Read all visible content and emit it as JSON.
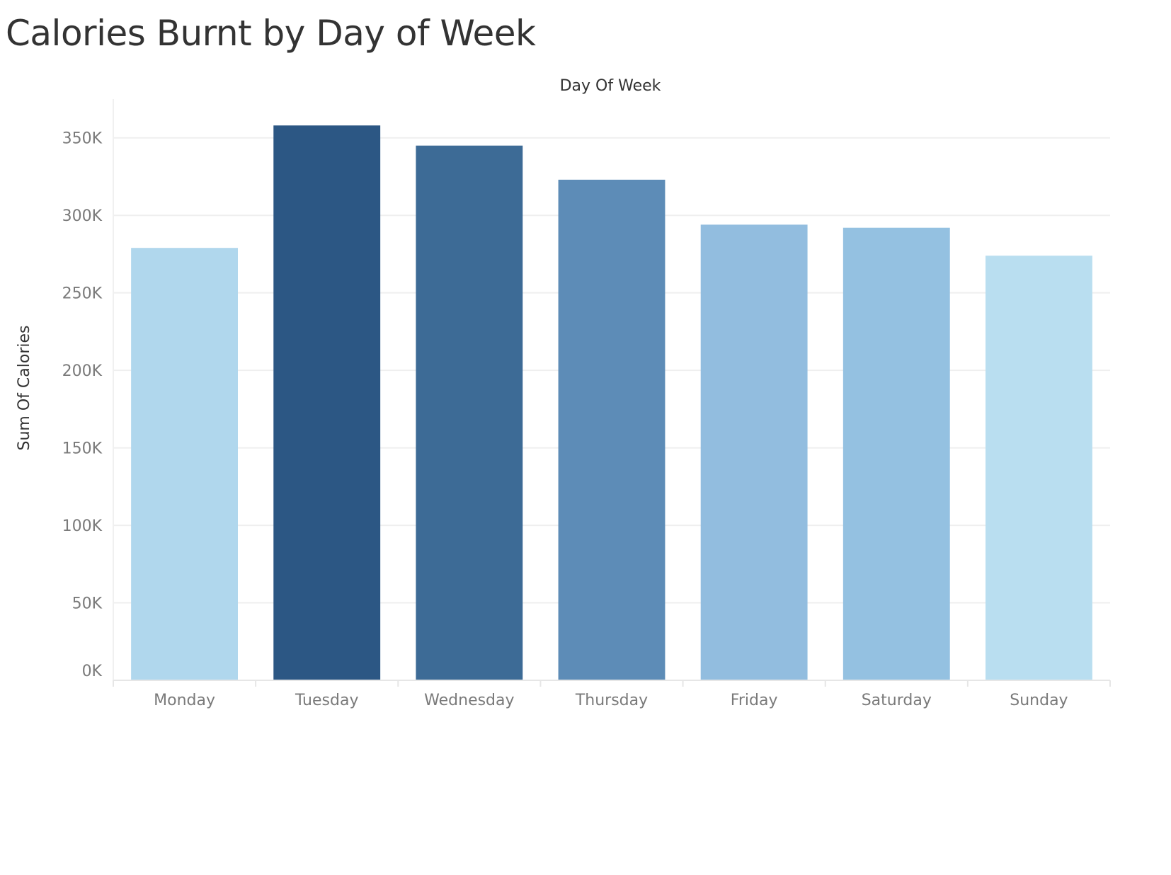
{
  "chart_data": {
    "type": "bar",
    "title": "Calories Burnt by Day of Week",
    "column_header": "Day Of Week",
    "xlabel": "",
    "ylabel": "Sum Of Calories",
    "categories": [
      "Monday",
      "Tuesday",
      "Wednesday",
      "Thursday",
      "Friday",
      "Saturday",
      "Sunday"
    ],
    "values": [
      279000,
      358000,
      345000,
      323000,
      294000,
      292000,
      274000
    ],
    "colors": [
      "#b0d7ed",
      "#2c5784",
      "#3d6b96",
      "#5d8cb7",
      "#92bddf",
      "#94c1e1",
      "#b9def0"
    ],
    "ylim": [
      0,
      375000
    ],
    "yticks": [
      0,
      50000,
      100000,
      150000,
      200000,
      250000,
      300000,
      350000
    ],
    "ytick_labels": [
      "0K",
      "50K",
      "100K",
      "150K",
      "200K",
      "250K",
      "300K",
      "350K"
    ],
    "grid": true,
    "gridline_color": "#efefef"
  }
}
